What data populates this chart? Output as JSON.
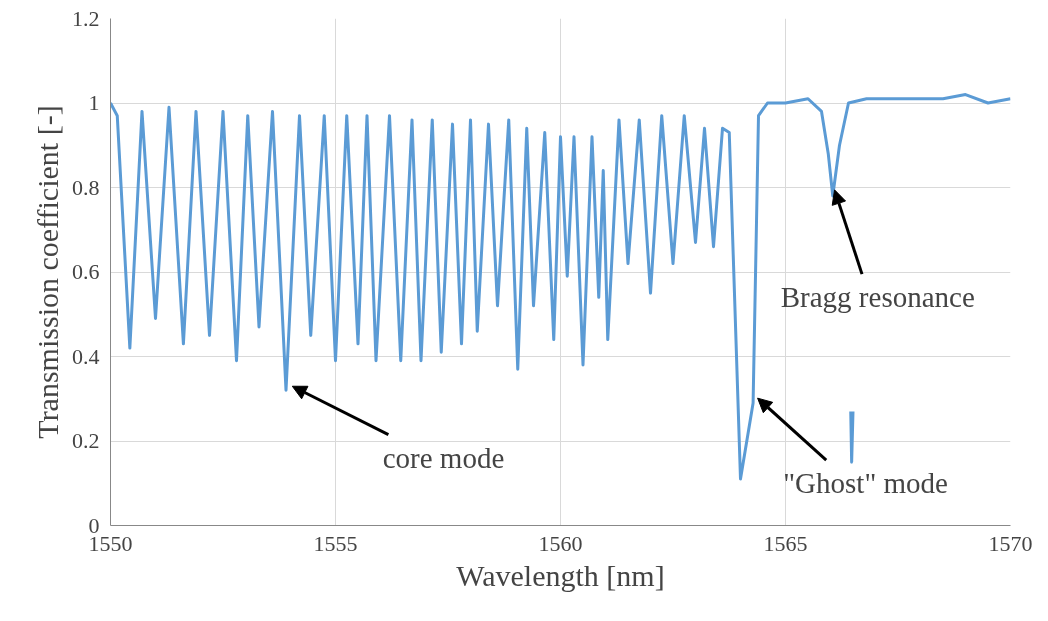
{
  "chart_data": {
    "type": "line",
    "xlabel": "Wavelength [nm]",
    "ylabel": "Transmission coefficient [-]",
    "xlim": [
      1550,
      1570
    ],
    "xticks": [
      1550,
      1555,
      1560,
      1565,
      1570
    ],
    "ylim": [
      0,
      1.2
    ],
    "yticks": [
      0,
      0.2,
      0.4,
      0.6,
      0.8,
      1,
      1.2
    ],
    "grid": true,
    "marker": "none",
    "line_style": "solid",
    "series": [
      {
        "color": "#5b9bd5",
        "x": [
          1550.0,
          1550.15,
          1550.43,
          1550.7,
          1551.0,
          1551.3,
          1551.62,
          1551.9,
          1552.2,
          1552.5,
          1552.8,
          1553.05,
          1553.3,
          1553.6,
          1553.9,
          1554.2,
          1554.45,
          1554.75,
          1555.0,
          1555.25,
          1555.5,
          1555.7,
          1555.9,
          1556.2,
          1556.45,
          1556.7,
          1556.9,
          1557.15,
          1557.35,
          1557.6,
          1557.8,
          1558.0,
          1558.15,
          1558.4,
          1558.6,
          1558.85,
          1559.05,
          1559.25,
          1559.4,
          1559.65,
          1559.85,
          1560.0,
          1560.15,
          1560.3,
          1560.5,
          1560.7,
          1560.85,
          1560.95,
          1561.05,
          1561.3,
          1561.5,
          1561.75,
          1562.0,
          1562.25,
          1562.5,
          1562.75,
          1563.0,
          1563.2,
          1563.4,
          1563.6,
          1563.75,
          1564.0,
          1564.28,
          1564.4,
          1564.6,
          1565.0,
          1565.5,
          1565.8,
          1565.95,
          1566.05,
          1566.2,
          1566.4,
          1566.8,
          1567.2,
          1567.6,
          1568.0,
          1568.5,
          1569.0,
          1569.5,
          1570.0
        ],
        "values": [
          1.0,
          0.97,
          0.42,
          0.98,
          0.49,
          0.99,
          0.43,
          0.98,
          0.45,
          0.98,
          0.39,
          0.97,
          0.47,
          0.98,
          0.32,
          0.97,
          0.45,
          0.97,
          0.39,
          0.97,
          0.43,
          0.97,
          0.39,
          0.97,
          0.39,
          0.96,
          0.39,
          0.96,
          0.41,
          0.95,
          0.43,
          0.96,
          0.46,
          0.95,
          0.52,
          0.96,
          0.37,
          0.94,
          0.52,
          0.93,
          0.44,
          0.92,
          0.59,
          0.92,
          0.38,
          0.92,
          0.54,
          0.84,
          0.44,
          0.96,
          0.62,
          0.96,
          0.55,
          0.97,
          0.62,
          0.97,
          0.67,
          0.94,
          0.66,
          0.94,
          0.93,
          0.11,
          0.29,
          0.97,
          1.0,
          1.0,
          1.01,
          0.98,
          0.88,
          0.78,
          0.9,
          1.0,
          1.01,
          1.01,
          1.01,
          1.01,
          1.01,
          1.02,
          1.0,
          1.01
        ]
      },
      {
        "color": "#5b9bd5",
        "x": [
          1566.45,
          1566.47,
          1566.5
        ],
        "values": [
          0.27,
          0.15,
          0.27
        ]
      }
    ],
    "annotations": [
      {
        "text": "core mode",
        "x": 1553.9,
        "y": 0.32
      },
      {
        "text": "\"Ghost\" mode",
        "x": 1564.28,
        "y": 0.29
      },
      {
        "text": "Bragg resonance",
        "x": 1566.05,
        "y": 0.78
      }
    ]
  }
}
